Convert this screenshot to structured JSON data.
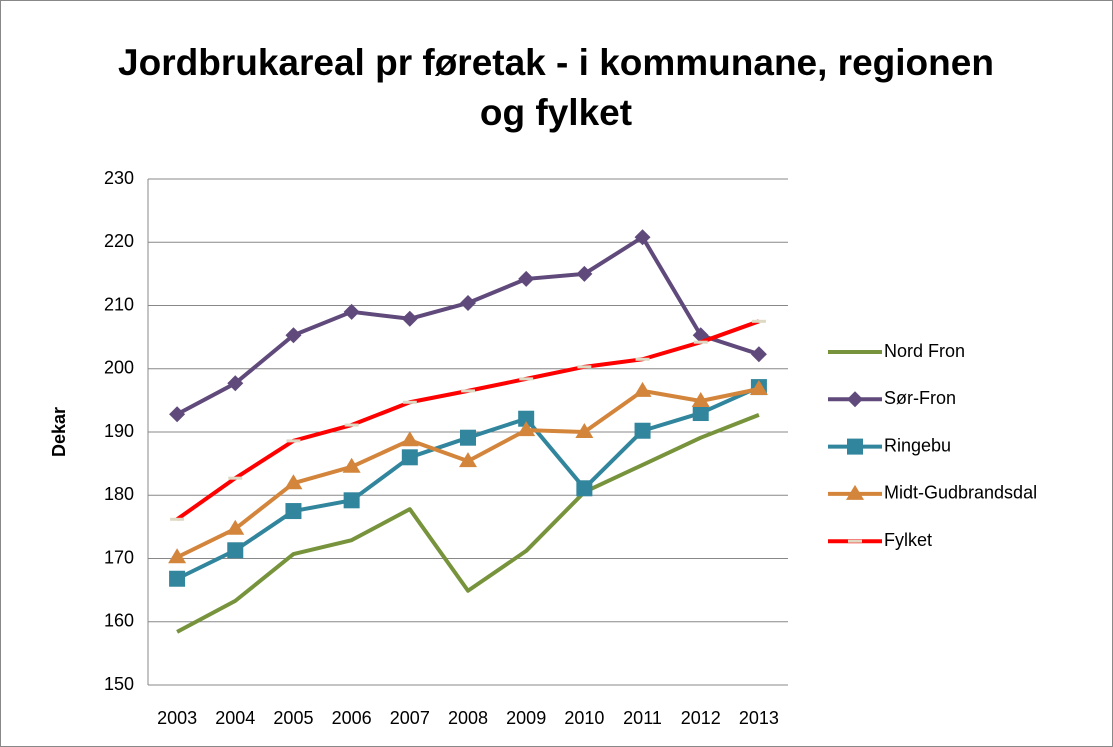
{
  "chart_data": {
    "type": "line",
    "title": "Jordbrukareal pr føretak - i kommunane, regionen og fylket",
    "y_label": "Dekar",
    "categories": [
      "2003",
      "2004",
      "2005",
      "2006",
      "2007",
      "2008",
      "2009",
      "2010",
      "2011",
      "2012",
      "2013"
    ],
    "ylim": [
      150,
      230
    ],
    "yticks": [
      150,
      160,
      170,
      180,
      190,
      200,
      210,
      220,
      230
    ],
    "grid": true,
    "legend": "right",
    "series": [
      {
        "name": "Nord Fron",
        "color": "#77933c",
        "marker": "none",
        "values": [
          158.4,
          163.3,
          170.7,
          172.9,
          177.8,
          164.9,
          171.2,
          180.5,
          184.8,
          189.1,
          192.7
        ]
      },
      {
        "name": "Sør-Fron",
        "color": "#604a7b",
        "marker": "diamond",
        "values": [
          192.8,
          197.7,
          205.3,
          209.0,
          207.9,
          210.4,
          214.2,
          215.0,
          220.8,
          205.3,
          202.3
        ]
      },
      {
        "name": "Ringebu",
        "color": "#31859c",
        "marker": "square",
        "values": [
          166.8,
          171.3,
          177.5,
          179.2,
          186.0,
          189.1,
          192.1,
          181.1,
          190.2,
          193.0,
          197.1
        ]
      },
      {
        "name": "Midt-Gudbrandsdal",
        "color": "#d4853c",
        "marker": "triangle",
        "values": [
          170.2,
          174.7,
          181.9,
          184.5,
          188.7,
          185.4,
          190.3,
          190.0,
          196.5,
          194.9,
          196.8
        ]
      },
      {
        "name": "Fylket",
        "color": "#ff0000",
        "marker": "dash",
        "values": [
          176.2,
          182.7,
          188.6,
          191.1,
          194.7,
          196.5,
          198.4,
          200.3,
          201.5,
          204.2,
          207.5
        ]
      }
    ]
  }
}
